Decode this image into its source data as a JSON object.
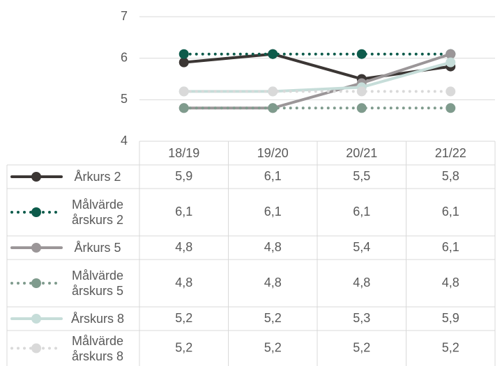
{
  "chart_data": {
    "type": "line",
    "categories": [
      "18/19",
      "19/20",
      "20/21",
      "21/22"
    ],
    "ylim": [
      4,
      7
    ],
    "yticks": [
      4,
      5,
      6,
      7
    ],
    "grid": true,
    "legend": "data-table",
    "series": [
      {
        "name": "Årkurs 2",
        "color": "#3b3634",
        "line_style": "solid",
        "values": [
          5.9,
          6.1,
          5.5,
          5.8
        ],
        "value_labels": [
          "5,9",
          "6,1",
          "5,5",
          "5,8"
        ]
      },
      {
        "name": "Målvärde årskurs 2",
        "color": "#0d5b4b",
        "line_style": "dotted",
        "values": [
          6.1,
          6.1,
          6.1,
          6.1
        ],
        "value_labels": [
          "6,1",
          "6,1",
          "6,1",
          "6,1"
        ]
      },
      {
        "name": "Årkurs 5",
        "color": "#9b9698",
        "line_style": "solid",
        "values": [
          4.8,
          4.8,
          5.4,
          6.1
        ],
        "value_labels": [
          "4,8",
          "4,8",
          "5,4",
          "6,1"
        ]
      },
      {
        "name": "Målvärde årskurs 5",
        "color": "#7f9b8d",
        "line_style": "dotted",
        "values": [
          4.8,
          4.8,
          4.8,
          4.8
        ],
        "value_labels": [
          "4,8",
          "4,8",
          "4,8",
          "4,8"
        ]
      },
      {
        "name": "Årskurs 8",
        "color": "#c6ddd9",
        "line_style": "solid",
        "values": [
          5.2,
          5.2,
          5.3,
          5.9
        ],
        "value_labels": [
          "5,2",
          "5,2",
          "5,3",
          "5,9"
        ]
      },
      {
        "name": "Målvärde årskurs 8",
        "color": "#d9d9d9",
        "line_style": "dotted",
        "values": [
          5.2,
          5.2,
          5.2,
          5.2
        ],
        "value_labels": [
          "5,2",
          "5,2",
          "5,2",
          "5,2"
        ]
      }
    ]
  }
}
